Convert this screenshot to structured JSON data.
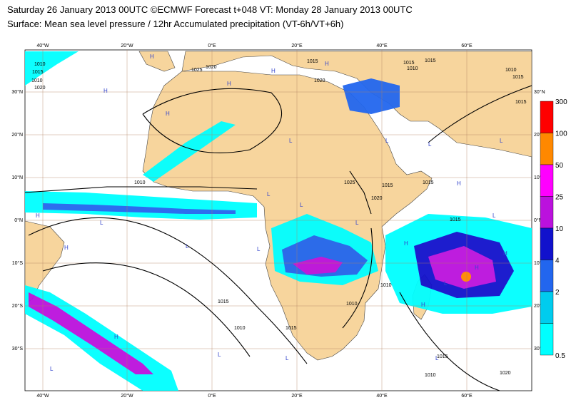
{
  "title_line1": "Saturday 26 January 2013 00UTC ©ECMWF Forecast t+048 VT: Monday 28 January 2013 00UTC",
  "title_line2": "Surface: Mean sea level pressure / 12hr Accumulated precipitation (VT-6h/VT+6h)",
  "lon_labels": [
    "40°W",
    "20°W",
    "0°E",
    "20°E",
    "40°E",
    "60°E"
  ],
  "lat_labels": [
    "30°N",
    "20°N",
    "10°N",
    "0°N",
    "10°S",
    "20°S",
    "30°S"
  ],
  "legend": {
    "labels": [
      "300",
      "100",
      "50",
      "25",
      "10",
      "4",
      "2",
      "0.5"
    ],
    "colors": [
      "#ff0000",
      "#ff8800",
      "#ff00ff",
      "#bb11dd",
      "#1111cc",
      "#2266ee",
      "#00ccee",
      "#00ffff"
    ]
  },
  "isobar_labels": [
    "1010",
    "1015",
    "1020",
    "1015",
    "1025",
    "1020",
    "1015",
    "1015",
    "1010",
    "1015",
    "1015",
    "1010",
    "1025",
    "1020",
    "1015",
    "1015",
    "1015",
    "1010",
    "1010",
    "1015",
    "1015",
    "1010",
    "1010",
    "1015",
    "1020",
    "1010",
    "1010",
    "1020"
  ],
  "pressure_centers": [
    "H",
    "H",
    "H",
    "H",
    "H",
    "H",
    "L",
    "L",
    "L",
    "L",
    "L",
    "L",
    "H",
    "H",
    "L",
    "L",
    "L",
    "H",
    "H",
    "L",
    "L",
    "H",
    "L",
    "H",
    "L",
    "L",
    "L",
    "H",
    "H",
    "L"
  ],
  "colors": {
    "land": "#f7d59d",
    "ocean": "#ffffff",
    "precip_light": "#00ffff",
    "precip_mid": "#2266ee",
    "precip_heavy": "#bb11dd"
  }
}
